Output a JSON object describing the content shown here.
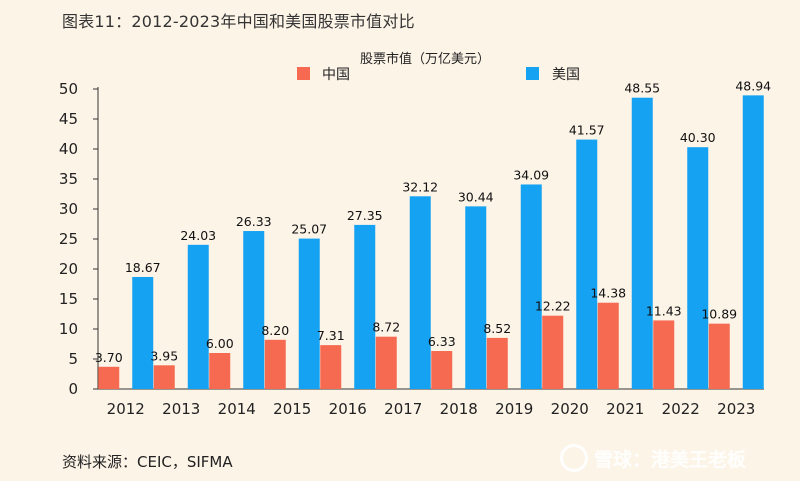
{
  "page": {
    "title": "图表11：2012-2023年中国和美国股票市值对比",
    "source": "资料来源：CEIC，SIFMA",
    "watermark": "雪球：港美王老板"
  },
  "colors": {
    "china": "#f56a50",
    "us": "#16a2f2",
    "background": "#fdf4e8",
    "axis": "#333333"
  },
  "chart_data": {
    "type": "bar",
    "subtitle": "股票市值（万亿美元）",
    "categories": [
      "2012",
      "2013",
      "2014",
      "2015",
      "2016",
      "2017",
      "2018",
      "2019",
      "2020",
      "2021",
      "2022",
      "2023"
    ],
    "series": [
      {
        "name": "中国",
        "values": [
          3.7,
          3.95,
          6.0,
          8.2,
          7.31,
          8.72,
          6.33,
          8.52,
          12.22,
          14.38,
          11.43,
          10.89
        ]
      },
      {
        "name": "美国",
        "values": [
          18.67,
          24.03,
          26.33,
          25.07,
          27.35,
          32.12,
          30.44,
          34.09,
          41.57,
          48.55,
          40.3,
          48.94
        ]
      }
    ],
    "ylim": [
      0,
      50
    ],
    "yticks": [
      0,
      5,
      10,
      15,
      20,
      25,
      30,
      35,
      40,
      45,
      50
    ],
    "grid": false,
    "legend_position": "top-center",
    "xlabel": "",
    "ylabel": ""
  }
}
